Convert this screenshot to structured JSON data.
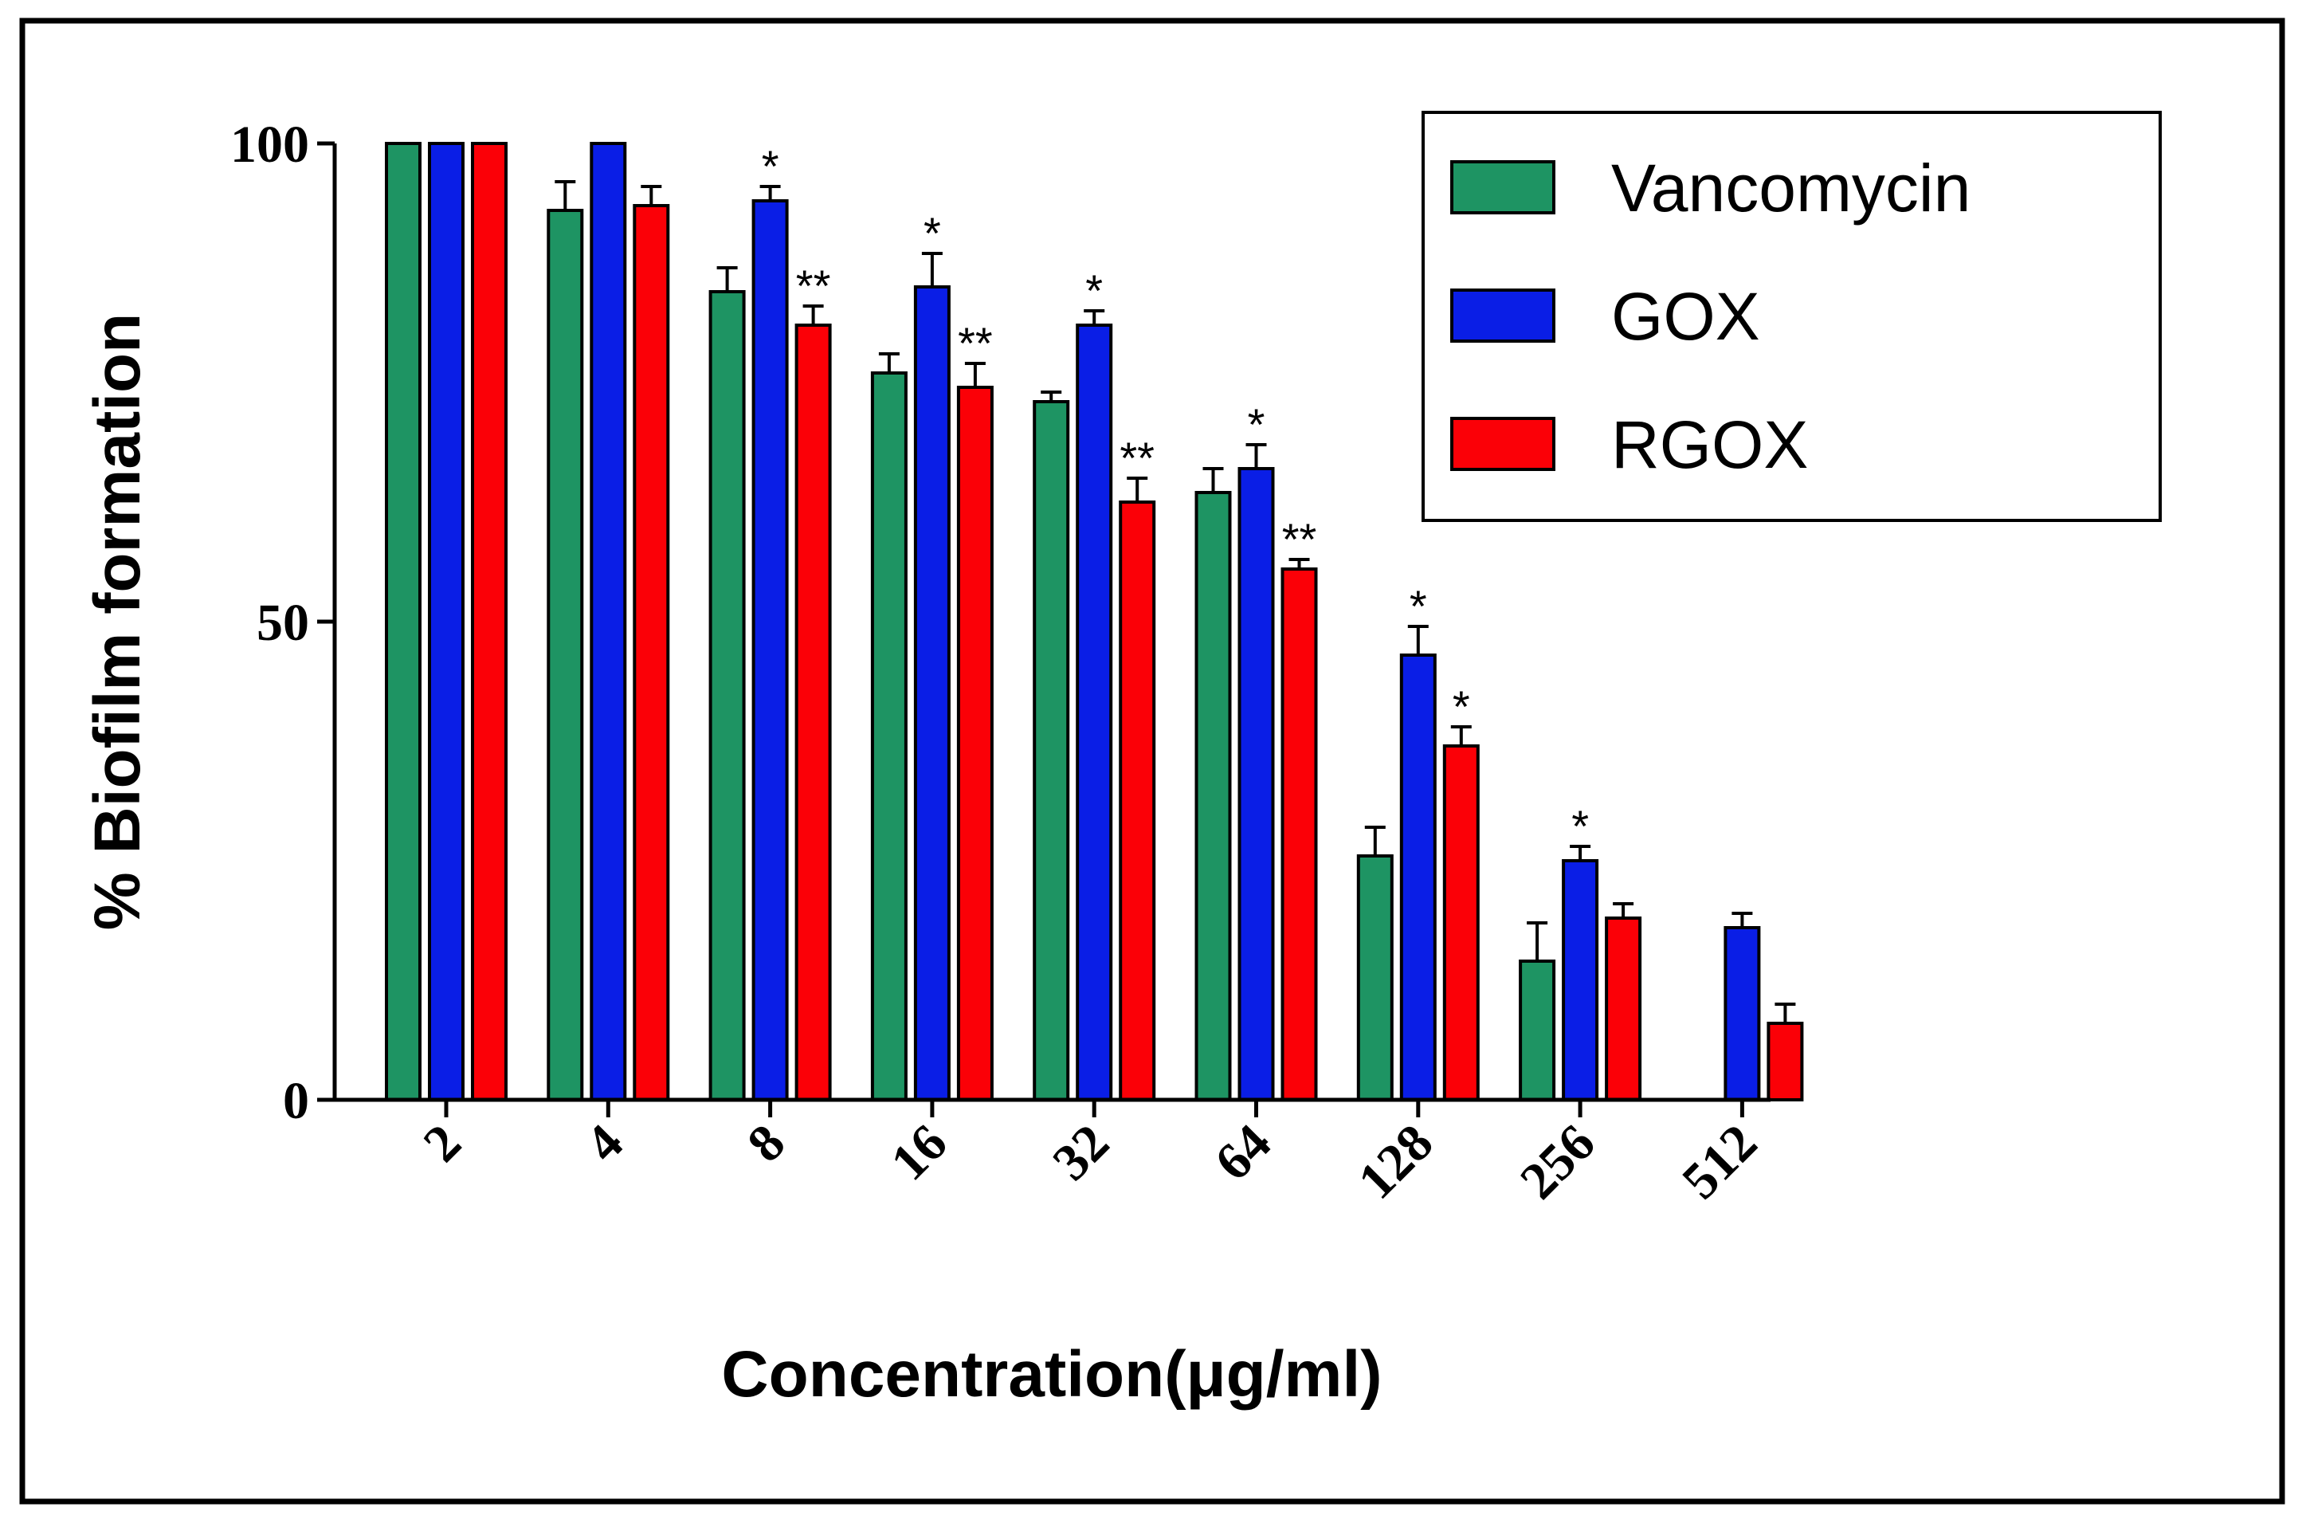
{
  "chart_data": {
    "type": "bar",
    "title": "",
    "xlabel": "Concentration(μg/ml)",
    "ylabel": "% Biofilm formation",
    "ylim": [
      0,
      100
    ],
    "yticks": [
      0,
      50,
      100
    ],
    "grid": false,
    "legend_position": "top-right",
    "categories": [
      "2",
      "4",
      "8",
      "16",
      "32",
      "64",
      "128",
      "256",
      "512"
    ],
    "series": [
      {
        "name": "Vancomycin",
        "color": "#1e9463",
        "values": [
          100,
          93,
          84.5,
          76,
          73,
          63.5,
          25.5,
          14.5,
          null
        ],
        "errors": [
          0,
          3,
          2.5,
          2,
          1,
          2.5,
          3,
          4,
          null
        ],
        "significance": [
          "",
          "",
          "",
          "",
          "",
          "",
          "",
          "",
          ""
        ]
      },
      {
        "name": "GOX",
        "color": "#0a1ee6",
        "values": [
          100,
          100,
          94,
          85,
          81,
          66,
          46.5,
          25,
          18
        ],
        "errors": [
          0,
          0,
          1.5,
          3.5,
          1.5,
          2.5,
          3,
          1.5,
          1.5
        ],
        "significance": [
          "",
          "",
          "*",
          "*",
          "*",
          "*",
          "*",
          "*",
          ""
        ]
      },
      {
        "name": "RGOX",
        "color": "#fb0007",
        "values": [
          100,
          93.5,
          81,
          74.5,
          62.5,
          55.5,
          37,
          19,
          8
        ],
        "errors": [
          0,
          2,
          2,
          2.5,
          2.5,
          1,
          2,
          1.5,
          2
        ],
        "significance": [
          "",
          "",
          "**",
          "**",
          "**",
          "**",
          "*",
          "",
          ""
        ]
      }
    ]
  }
}
